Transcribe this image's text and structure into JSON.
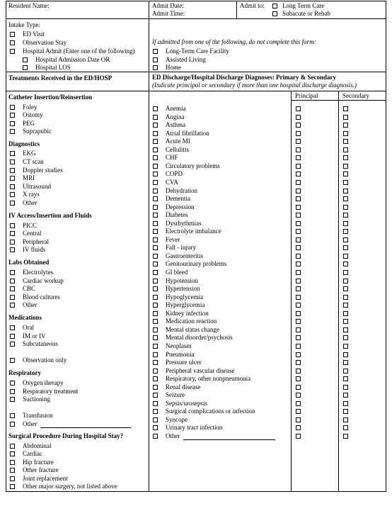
{
  "header": {
    "resident_name": "Resident Name:",
    "admit_date": "Admit Date:",
    "admit_time": "Admit Time:",
    "admit_to": "Admit to:",
    "admit_options": [
      "Long Term Care",
      "Subacute or Rehab"
    ]
  },
  "intake": {
    "title": "Intake Type:",
    "items": [
      "ED Visit",
      "Observation Stay",
      "Hospital Admit (Enter one of the following)"
    ],
    "sub_items": [
      "Hospital Admission Date OR",
      "Hospital LOS"
    ]
  },
  "facility": {
    "note": "If admitted from one of the following, do not complete this form:",
    "items": [
      "Long-Term Care Facility",
      "Assisted Living",
      "Home"
    ]
  },
  "treatments_header": "Treatments Received in the ED/HOSP",
  "diagnoses_header": {
    "title": "ED Discharge/Hospital Discharge Diagnoses: Primary & Secondary",
    "subtitle": "(Indicate principal or secondary if more than one hospital discharge diagnosis.)",
    "principal": "Principal",
    "secondary": "Secondary"
  },
  "treatments": {
    "catheter_title": "Catheter Insertion/Reinsertion",
    "catheter": [
      "Foley",
      "Ostomy",
      "PEG",
      "Suprapubic"
    ],
    "diagnostics_title": "Diagnostics",
    "diagnostics": [
      "EKG",
      "CT scan",
      "Doppler studies",
      "MRI",
      "Ultrasound",
      "X rays",
      "Other"
    ],
    "iv_title": "IV Access/Insertion and Fluids",
    "iv": [
      "PICC",
      "Central",
      "Peripheral",
      "IV fluids"
    ],
    "labs_title": "Labs Obtained",
    "labs": [
      "Electrolytes",
      "Cardiac workup",
      "CBC",
      "Blood cultures",
      "Other"
    ],
    "medications_title": "Medications",
    "medications": [
      "Oral",
      "IM or IV",
      "Subcutaneous"
    ],
    "observation_only": "Observation only",
    "respiratory_title": "Respiratory",
    "respiratory": [
      "Oxygen therapy",
      "Respiratory treatment",
      "Suctioning"
    ],
    "transfusion": "Transfusion",
    "other": "Other",
    "surgical_title": "Surgical Procedure During Hospital Stay?",
    "surgical": [
      "Abdominal",
      "Cardiac",
      "Hip fracture",
      "Other fracture",
      "Joint replacement",
      "Other major surgery, not listed above"
    ]
  },
  "diagnoses": [
    "Anemia",
    "Angina",
    "Asthma",
    "Atrial fibrillation",
    "Acute MI",
    "Cellulitis",
    "CHF",
    "Circulatory problems",
    "COPD",
    "CVA",
    "Dehydration",
    "Dementia",
    "Depression",
    "Diabetes",
    "Dysrhythmias",
    "Electrolyte imbalance",
    "Fever",
    "Fall - injury",
    "Gastroenteritis",
    "Genitourinary problems",
    "GI bleed",
    "Hypotension",
    "Hypertension",
    "Hypoglycemia",
    "Hyperglycemia",
    "Kidney infection",
    "Medication reaction",
    "Mental status change",
    "Mental disorder/psychosis",
    "Neoplasm",
    "Pneumonia",
    "Pressure ulcer",
    "Peripheral vascular disease",
    "Respiratory, other nonpneumonia",
    "Renal disease",
    "Seizure",
    "Sepsis/urosepsis",
    "Surgical complications or infection",
    "Syncope",
    "Urinary tract infection",
    "Other"
  ]
}
